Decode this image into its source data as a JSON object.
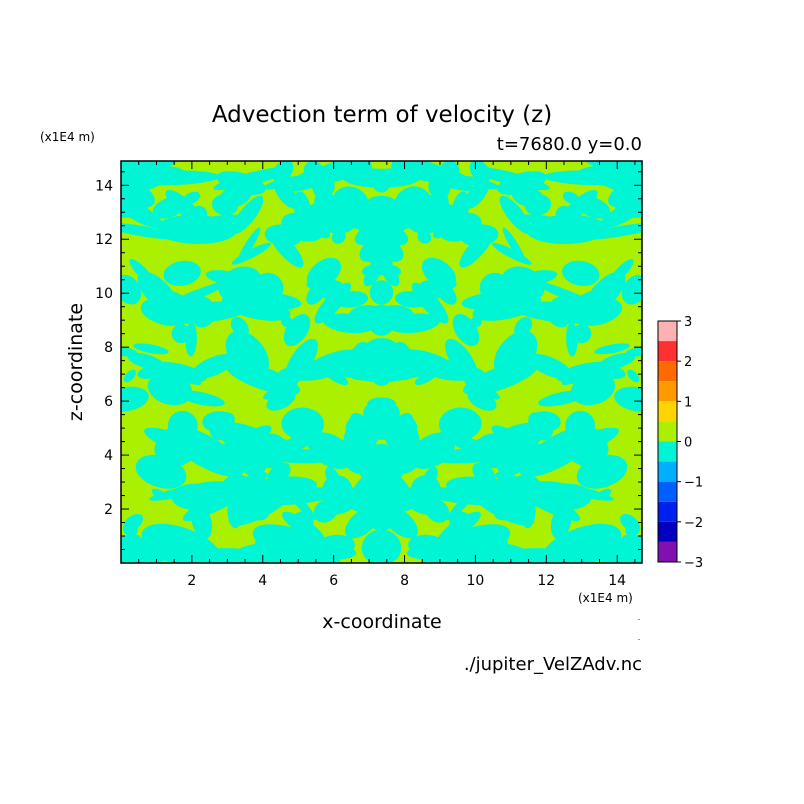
{
  "chart_data": {
    "type": "heatmap",
    "title": "Advection term of velocity (z)",
    "subtitle": "t=7680.0 y=0.0",
    "xlabel": "x-coordinate",
    "ylabel": "z-coordinate",
    "x_unit": "(x1E4 m)",
    "y_unit": "(x1E4 m)",
    "xlim": [
      0,
      14.7
    ],
    "ylim": [
      0,
      14.9
    ],
    "x_ticks": [
      2,
      4,
      6,
      8,
      10,
      12,
      14
    ],
    "y_ticks": [
      2,
      4,
      6,
      8,
      10,
      12,
      14
    ],
    "colorbar": {
      "ticks": [
        3,
        2,
        1,
        0,
        -1,
        -2,
        -3
      ],
      "levels": [
        {
          "from": 2.5,
          "to": 3,
          "color": "#ffb0b0"
        },
        {
          "from": 2,
          "to": 2.5,
          "color": "#ff3030"
        },
        {
          "from": 1.5,
          "to": 2,
          "color": "#ff6a00"
        },
        {
          "from": 1,
          "to": 1.5,
          "color": "#ff9900"
        },
        {
          "from": 0.5,
          "to": 1,
          "color": "#ffd400"
        },
        {
          "from": 0,
          "to": 0.5,
          "color": "#aaf000"
        },
        {
          "from": -0.5,
          "to": 0,
          "color": "#00f5d5"
        },
        {
          "from": -1,
          "to": -0.5,
          "color": "#00b0ff"
        },
        {
          "from": -1.5,
          "to": -1,
          "color": "#0060ff"
        },
        {
          "from": -2,
          "to": -1.5,
          "color": "#0020f0"
        },
        {
          "from": -2.5,
          "to": -2,
          "color": "#0000c0"
        },
        {
          "from": -3,
          "to": -2.5,
          "color": "#8010b0"
        }
      ]
    },
    "field_colors": {
      "positive": "#aaf000",
      "negative": "#00f5d5"
    }
  },
  "footer": {
    "filename": "./jupiter_VelZAdv.nc"
  }
}
